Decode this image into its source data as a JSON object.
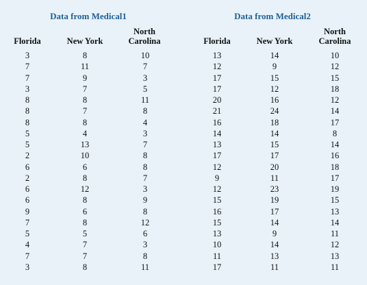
{
  "groups": [
    {
      "title": "Data from Medical1",
      "headers": [
        "Florida",
        "New York",
        "North\nCarolina"
      ],
      "columns": [
        [
          "3",
          "7",
          "7",
          "3",
          "8",
          "8",
          "8",
          "5",
          "5",
          "2",
          "6",
          "2",
          "6",
          "6",
          "9",
          "7",
          "5",
          "4",
          "7",
          "3"
        ],
        [
          "8",
          "11",
          "9",
          "7",
          "8",
          "7",
          "8",
          "4",
          "13",
          "10",
          "6",
          "8",
          "12",
          "8",
          "6",
          "8",
          "5",
          "7",
          "7",
          "8"
        ],
        [
          "10",
          "7",
          "3",
          "5",
          "11",
          "8",
          "4",
          "3",
          "7",
          "8",
          "8",
          "7",
          "3",
          "9",
          "8",
          "12",
          "6",
          "3",
          "8",
          "11"
        ]
      ]
    },
    {
      "title": "Data from Medical2",
      "headers": [
        "Florida",
        "New York",
        "North\nCarolina"
      ],
      "columns": [
        [
          "13",
          "12",
          "17",
          "17",
          "20",
          "21",
          "16",
          "14",
          "13",
          "17",
          "12",
          "9",
          "12",
          "15",
          "16",
          "15",
          "13",
          "10",
          "11",
          "17"
        ],
        [
          "14",
          "9",
          "15",
          "12",
          "16",
          "24",
          "18",
          "14",
          "15",
          "17",
          "20",
          "11",
          "23",
          "19",
          "17",
          "14",
          "9",
          "14",
          "13",
          "11"
        ],
        [
          "10",
          "12",
          "15",
          "18",
          "12",
          "14",
          "17",
          "8",
          "14",
          "16",
          "18",
          "17",
          "19",
          "15",
          "13",
          "14",
          "11",
          "12",
          "13",
          "11"
        ]
      ]
    }
  ]
}
